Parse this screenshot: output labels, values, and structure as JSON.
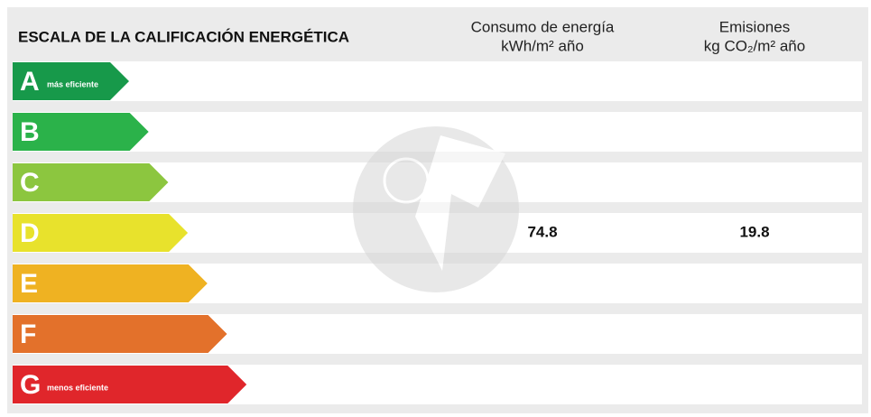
{
  "title": "ESCALA DE LA CALIFICACIÓN ENERGÉTICA",
  "columns": [
    {
      "line1": "Consumo de energía",
      "line2": "kWh/m² año"
    },
    {
      "line1": "Emisiones",
      "line2": "kg CO₂/m² año"
    }
  ],
  "rows": [
    {
      "letter": "A",
      "color": "#17994a",
      "note": "más eficiente"
    },
    {
      "letter": "B",
      "color": "#2bb24a"
    },
    {
      "letter": "C",
      "color": "#8cc63f"
    },
    {
      "letter": "D",
      "color": "#e8e22c",
      "consumption": 74.8,
      "emissions": 19.8
    },
    {
      "letter": "E",
      "color": "#efb222"
    },
    {
      "letter": "F",
      "color": "#e3712b"
    },
    {
      "letter": "G",
      "color": "#e0262b",
      "note": "menos eficiente"
    }
  ]
}
